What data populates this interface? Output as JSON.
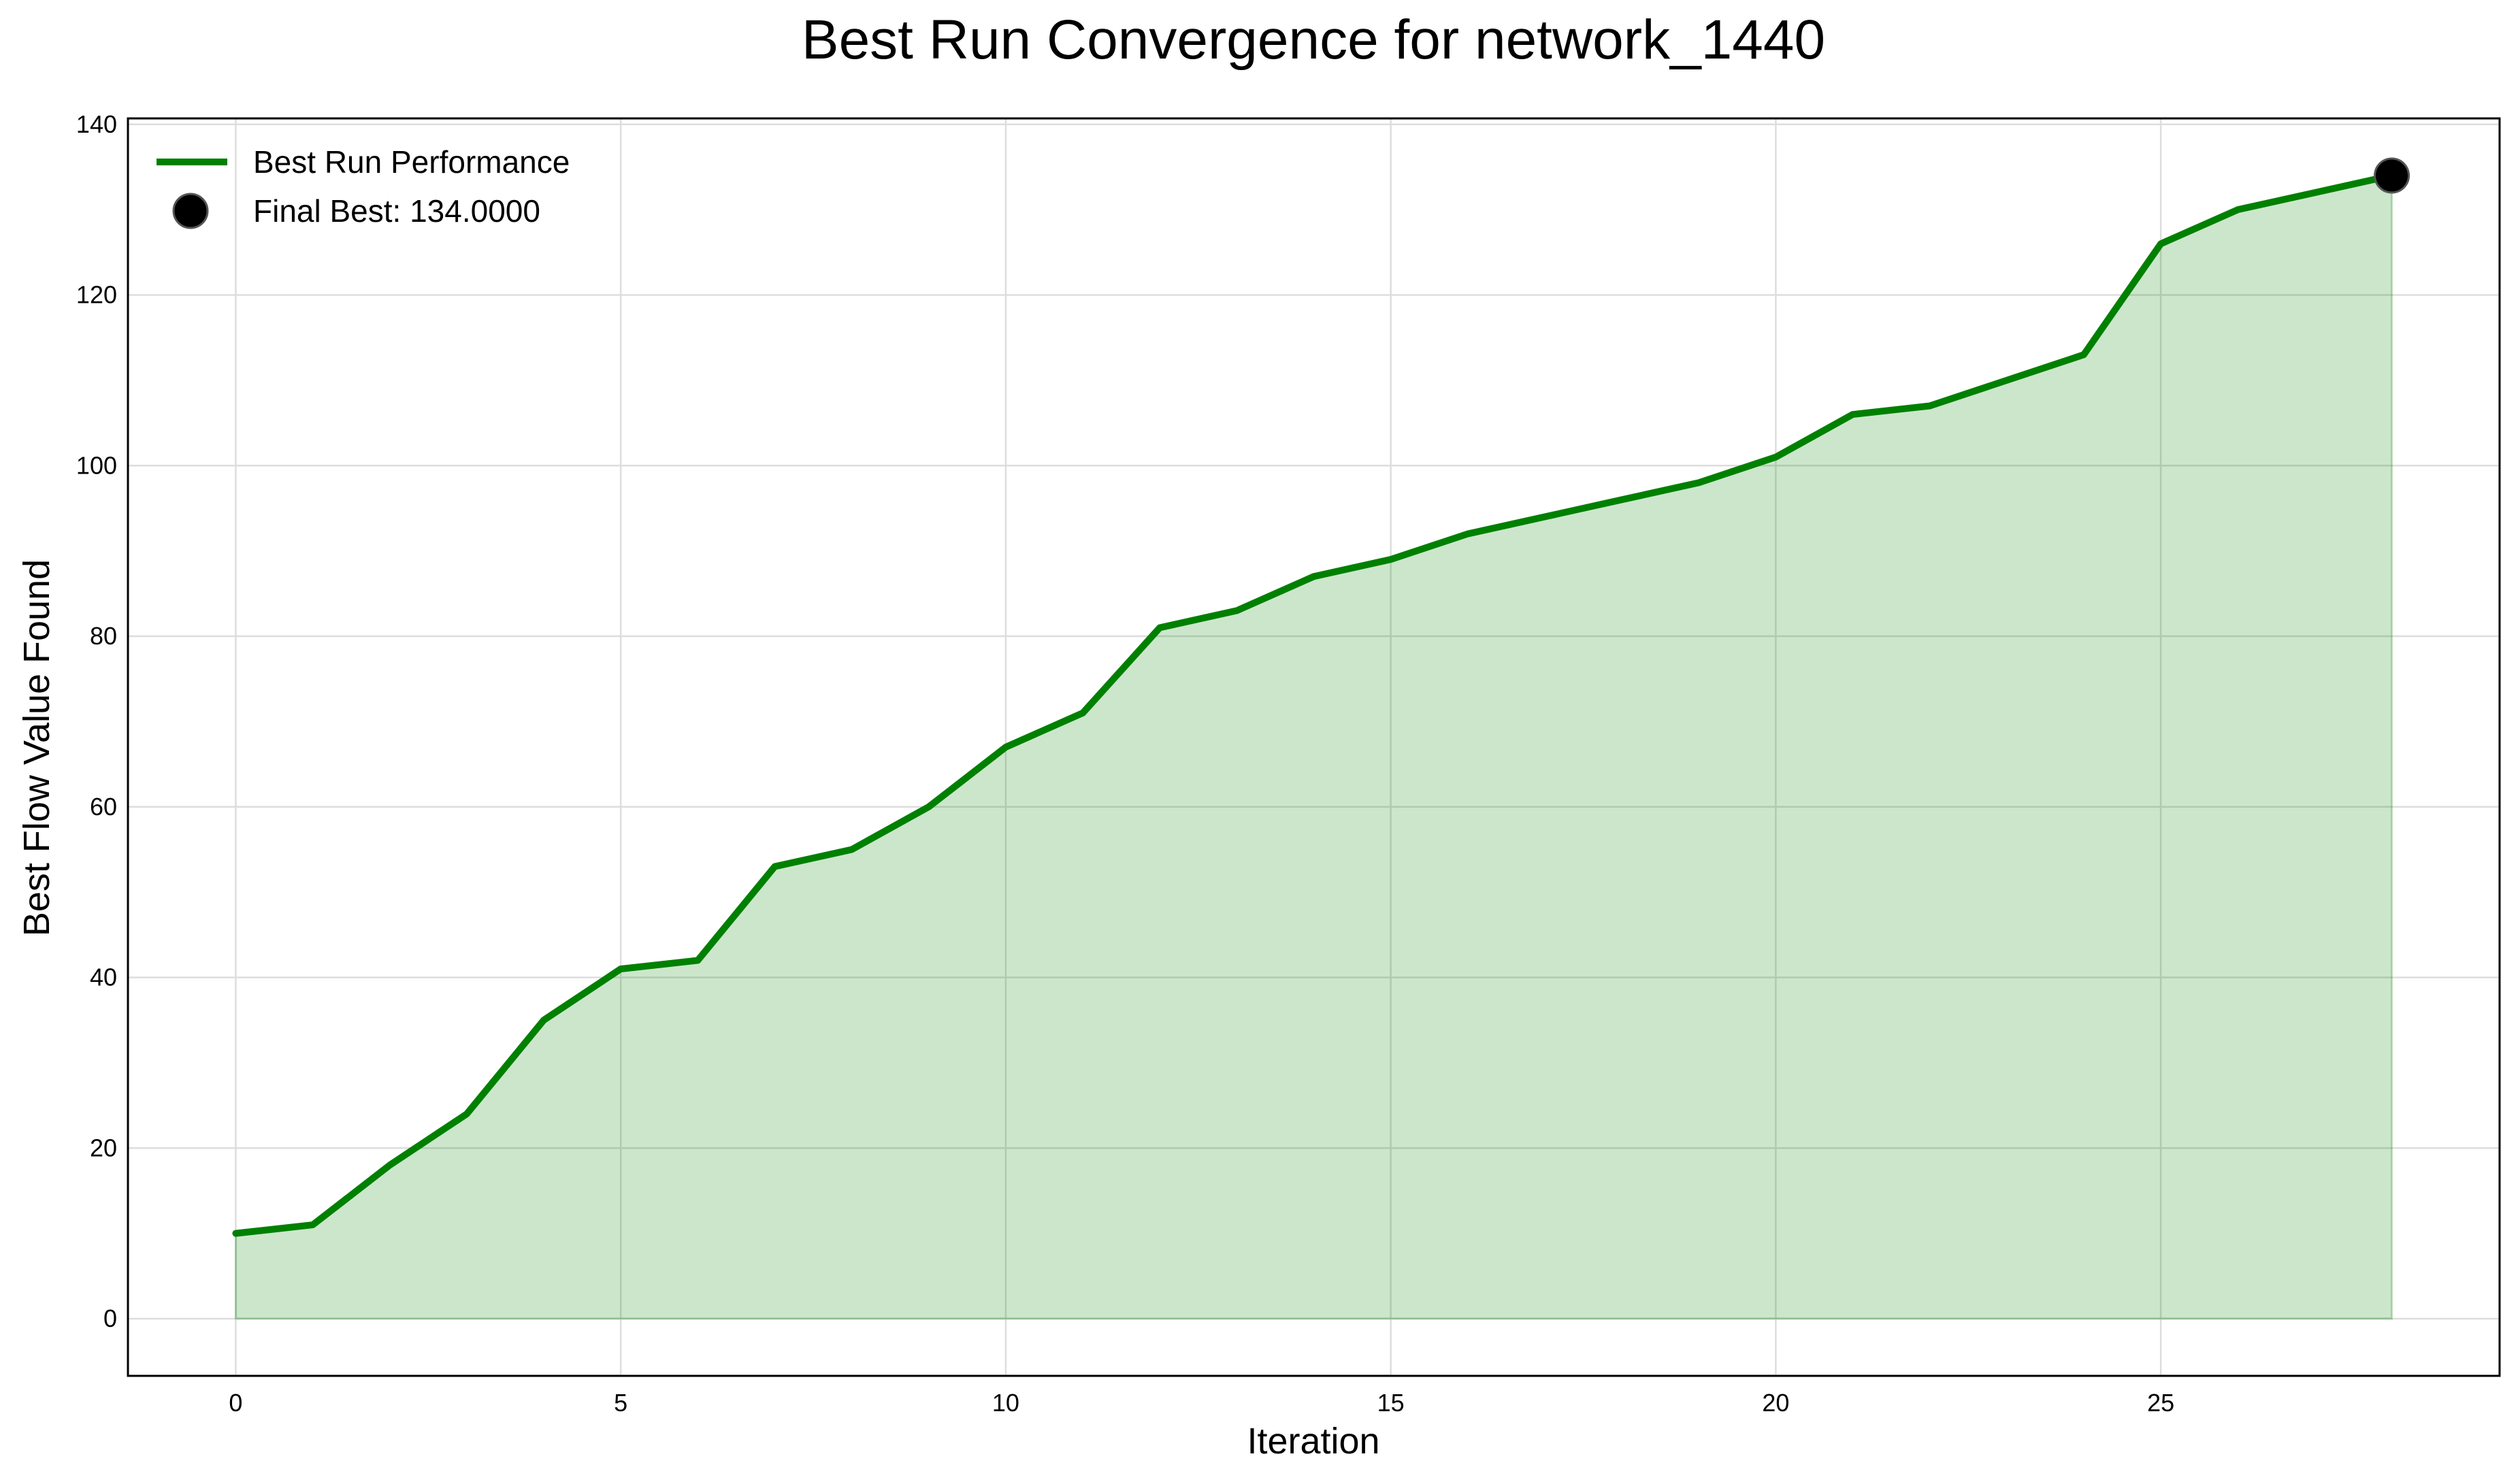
{
  "chart_data": {
    "type": "area",
    "title": "Best Run Convergence for network_1440",
    "xlabel": "Iteration",
    "ylabel": "Best Flow Value Found",
    "xlim": [
      -1.4,
      29.4
    ],
    "ylim": [
      -6.7,
      140.7
    ],
    "xticks": [
      0,
      5,
      10,
      15,
      20,
      25
    ],
    "yticks": [
      0,
      20,
      40,
      60,
      80,
      100,
      120,
      140
    ],
    "grid": true,
    "legend_position": "top-left",
    "series": [
      {
        "name": "Best Run Performance",
        "color": "#008000",
        "fill_color": "#008000",
        "fill_opacity": 0.2,
        "x": [
          0,
          1,
          2,
          3,
          4,
          5,
          6,
          7,
          8,
          9,
          10,
          11,
          12,
          13,
          14,
          15,
          16,
          17,
          18,
          19,
          20,
          21,
          22,
          23,
          24,
          25,
          26,
          27,
          28
        ],
        "y": [
          10,
          11,
          18,
          24,
          35,
          41,
          42,
          53,
          55,
          60,
          67,
          71,
          81,
          83,
          87,
          89,
          92,
          94,
          96,
          98,
          101,
          106,
          107,
          110,
          113,
          126,
          130,
          132,
          134
        ]
      }
    ],
    "annotations": [
      {
        "type": "marker",
        "label": "Final Best: 134.0000",
        "x": 28,
        "y": 134,
        "color": "#000000"
      }
    ]
  }
}
